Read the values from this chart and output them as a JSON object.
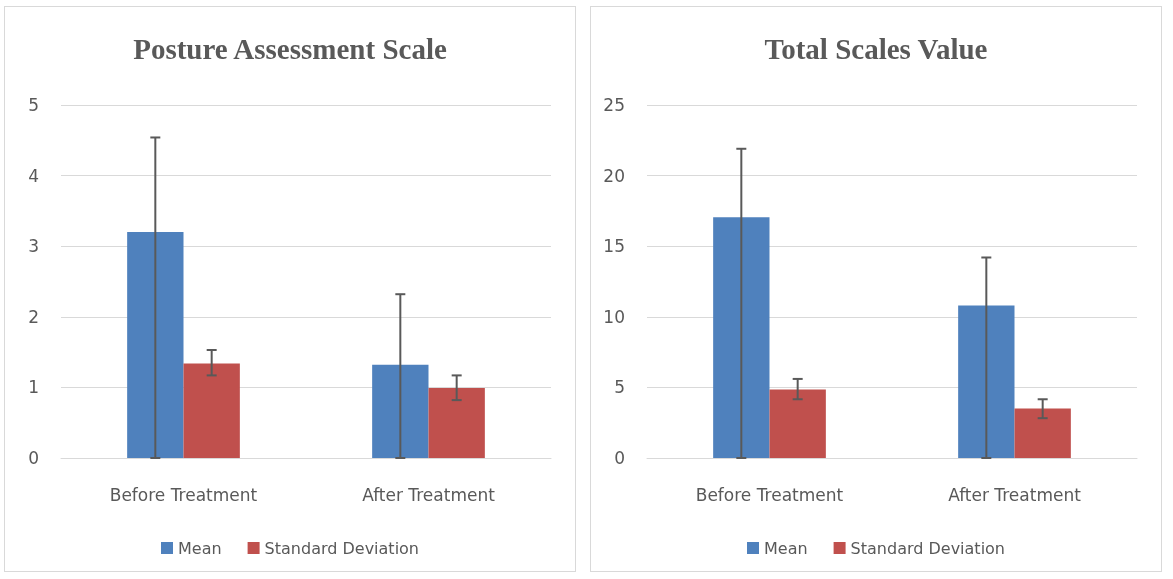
{
  "chart_data": [
    {
      "type": "bar",
      "title": "Posture Assessment Scale",
      "categories": [
        "Before Treatment",
        "After Treatment"
      ],
      "series": [
        {
          "name": "Mean",
          "color": "#4f81bd",
          "values": [
            3.2,
            1.32
          ],
          "errors": [
            [
              0,
              4.54
            ],
            [
              0,
              2.32
            ]
          ]
        },
        {
          "name": "Standard Deviation",
          "color": "#c0504d",
          "values": [
            1.34,
            0.99
          ],
          "errors": [
            [
              1.17,
              1.53
            ],
            [
              0.82,
              1.17
            ]
          ]
        }
      ],
      "ylim": [
        0,
        5
      ],
      "yticks": [
        0,
        1,
        2,
        3,
        4,
        5
      ],
      "grid": "y",
      "legend": "bottom"
    },
    {
      "type": "bar",
      "title": "Total Scales Value",
      "categories": [
        "Before Treatment",
        "After Treatment"
      ],
      "series": [
        {
          "name": "Mean",
          "color": "#4f81bd",
          "values": [
            17.05,
            10.8
          ],
          "errors": [
            [
              0,
              21.9
            ],
            [
              0,
              14.2
            ]
          ]
        },
        {
          "name": "Standard Deviation",
          "color": "#c0504d",
          "values": [
            4.86,
            3.51
          ],
          "errors": [
            [
              4.16,
              5.6
            ],
            [
              2.82,
              4.16
            ]
          ]
        }
      ],
      "ylim": [
        0,
        25
      ],
      "yticks": [
        0,
        5,
        10,
        15,
        20,
        25
      ],
      "grid": "y",
      "legend": "bottom"
    }
  ]
}
